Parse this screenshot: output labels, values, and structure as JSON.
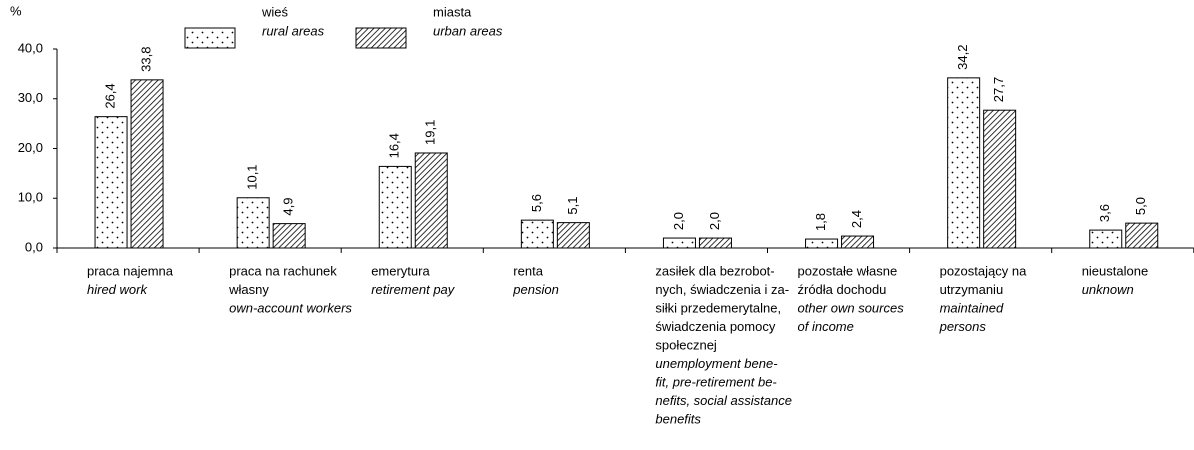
{
  "chart_data": {
    "type": "bar",
    "y_label": "%",
    "categories": [
      {
        "pl": [
          "praca najemna"
        ],
        "en": [
          "hired work"
        ]
      },
      {
        "pl": [
          "praca na rachunek",
          "własny"
        ],
        "en": [
          "own-account workers"
        ]
      },
      {
        "pl": [
          "emerytura"
        ],
        "en": [
          "retirement pay"
        ]
      },
      {
        "pl": [
          "renta"
        ],
        "en": [
          "pension"
        ]
      },
      {
        "pl": [
          "zasiłek dla bezrobot-",
          "nych, świadczenia i za-",
          "siłki przedemerytalne,",
          "świadczenia pomocy",
          "społecznej"
        ],
        "en": [
          "unemployment bene-",
          "fit, pre-retirement be-",
          "nefits, social assistance",
          "benefits"
        ]
      },
      {
        "pl": [
          "pozostałe własne",
          "źródła dochodu"
        ],
        "en": [
          "other own sources",
          "of income"
        ]
      },
      {
        "pl": [
          "pozostający na",
          "utrzymaniu"
        ],
        "en": [
          "maintained",
          "persons"
        ]
      },
      {
        "pl": [
          "nieustalone"
        ],
        "en": [
          "unknown"
        ]
      }
    ],
    "series": [
      {
        "name": "wieś",
        "name_en": "rural areas",
        "color": "#000000",
        "pattern": "dots",
        "values": [
          26.4,
          10.1,
          16.4,
          5.6,
          2.0,
          1.8,
          34.2,
          3.6
        ],
        "value_labels": [
          "26,4",
          "10,1",
          "16,4",
          "5,6",
          "2,0",
          "1,8",
          "34,2",
          "3,6"
        ]
      },
      {
        "name": "miasta",
        "name_en": "urban areas",
        "color": "#000000",
        "pattern": "hatch",
        "values": [
          33.8,
          4.9,
          19.1,
          5.1,
          2.0,
          2.4,
          27.7,
          5.0
        ],
        "value_labels": [
          "33,8",
          "4,9",
          "19,1",
          "5,1",
          "2,0",
          "2,4",
          "27,7",
          "5,0"
        ]
      }
    ],
    "ylim": [
      0,
      40
    ],
    "yticks": [
      {
        "value": 0,
        "label": "0,0"
      },
      {
        "value": 10,
        "label": "10,0"
      },
      {
        "value": 20,
        "label": "20,0"
      },
      {
        "value": 30,
        "label": "30,0"
      },
      {
        "value": 40,
        "label": "40,0"
      }
    ],
    "grid": false,
    "legend": "top"
  }
}
